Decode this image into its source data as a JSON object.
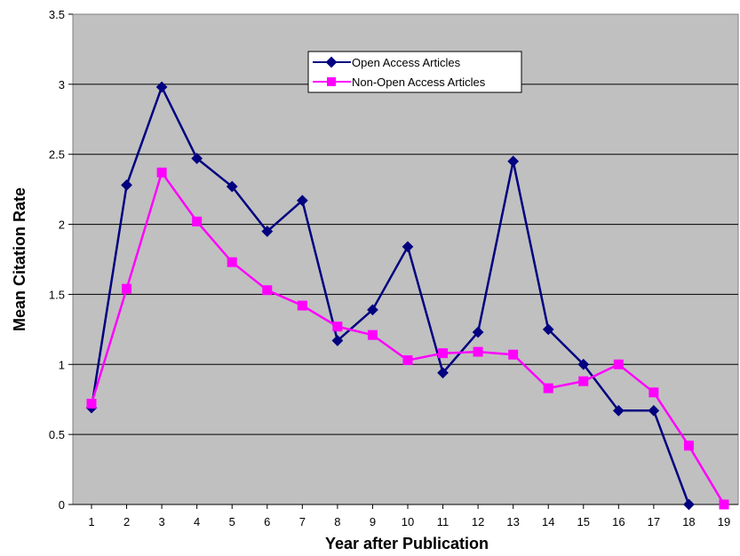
{
  "chart_data": {
    "type": "line",
    "title": "",
    "xlabel": "Year after Publication",
    "ylabel": "Mean Citation Rate",
    "x": [
      1,
      2,
      3,
      4,
      5,
      6,
      7,
      8,
      9,
      10,
      11,
      12,
      13,
      14,
      15,
      16,
      17,
      18,
      19
    ],
    "xlim": [
      1,
      19
    ],
    "ylim": [
      0,
      3.5
    ],
    "yticks": [
      "0",
      "0.5",
      "1",
      "1.5",
      "2",
      "2.5",
      "3",
      "3.5"
    ],
    "grid": "horizontal",
    "legend_position": "top-center",
    "background_color": "#c0c0c0",
    "series": [
      {
        "name": "Open Access Articles",
        "color": "#000080",
        "marker": "diamond",
        "x": [
          1,
          2,
          3,
          4,
          5,
          6,
          7,
          8,
          9,
          10,
          11,
          12,
          13,
          14,
          15,
          16,
          17,
          18
        ],
        "values": [
          0.69,
          2.28,
          2.98,
          2.47,
          2.27,
          1.95,
          2.17,
          1.17,
          1.39,
          1.84,
          0.94,
          1.23,
          2.45,
          1.25,
          1.0,
          0.67,
          0.67,
          0.0
        ]
      },
      {
        "name": "Non-Open Access Articles",
        "color": "#ff00ff",
        "marker": "square",
        "x": [
          1,
          2,
          3,
          4,
          5,
          6,
          7,
          8,
          9,
          10,
          11,
          12,
          13,
          14,
          15,
          16,
          17,
          18,
          19
        ],
        "values": [
          0.72,
          1.54,
          2.37,
          2.02,
          1.73,
          1.53,
          1.42,
          1.27,
          1.21,
          1.03,
          1.08,
          1.09,
          1.07,
          0.83,
          0.88,
          1.0,
          0.8,
          0.42,
          0.0
        ]
      }
    ]
  }
}
